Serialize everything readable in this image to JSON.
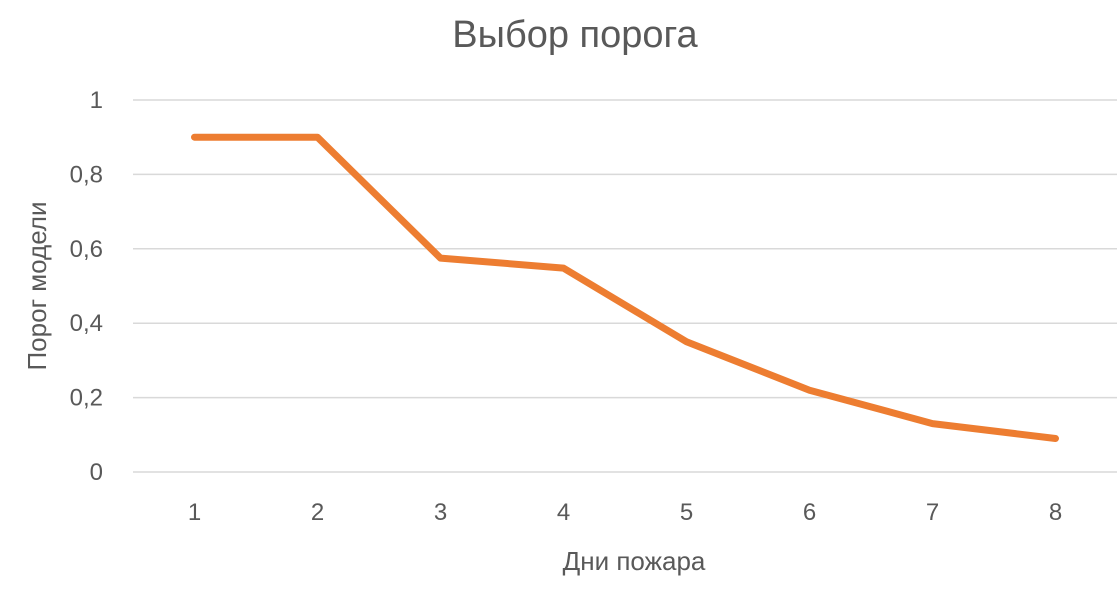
{
  "chart_data": {
    "type": "line",
    "title": "Выбор порога",
    "xlabel": "Дни пожара",
    "ylabel": "Порог модели",
    "categories": [
      "1",
      "2",
      "3",
      "4",
      "5",
      "6",
      "7",
      "8"
    ],
    "series": [
      {
        "values": [
          0.9,
          0.9,
          0.575,
          0.548,
          0.35,
          0.22,
          0.13,
          0.09
        ]
      }
    ],
    "ylim": [
      0,
      1
    ],
    "yticks": [
      "0",
      "0,2",
      "0,4",
      "0,6",
      "0,8",
      "1"
    ],
    "grid": true,
    "legend": "none",
    "series_color": "#ed7d31"
  }
}
